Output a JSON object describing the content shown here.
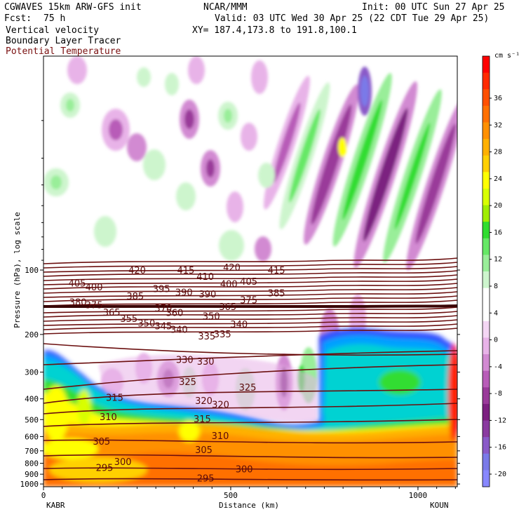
{
  "header": {
    "model": "CGWAVES 15km ARW-GFS init",
    "center": "NCAR/MMM",
    "init": "Init: 00 UTC Sun 27 Apr 25",
    "fcst_label": "Fcst:",
    "fcst_value": "75 h",
    "valid": "Valid: 03 UTC Wed 30 Apr 25 (22 CDT Tue 29 Apr 25)",
    "xy": "XY= 187.4,173.8 to 191.8,100.1",
    "field1": "Vertical velocity",
    "field2": "Boundary Layer Tracer",
    "field3": "Potential Temperature"
  },
  "colors": {
    "theta_contour": "#6b0f0f",
    "field3_text": "#7a1010"
  },
  "chart_data": {
    "type": "heatmap",
    "title": "",
    "xlabel": "Distance (km)",
    "ylabel": "Pressure (hPa), log scale",
    "x_ticks": [
      0,
      500,
      1000
    ],
    "y_ticks": [
      100,
      200,
      300,
      400,
      500,
      600,
      700,
      800,
      900,
      1000
    ],
    "y_scale": "log",
    "xlim": [
      0,
      1105
    ],
    "ylim": [
      1030,
      10
    ],
    "endpoints": {
      "left": "KABR",
      "right": "KOUN"
    },
    "colorbar": {
      "unit": "cm s⁻¹",
      "labels": [
        36,
        32,
        28,
        24,
        20,
        16,
        12,
        8,
        4,
        0,
        -4,
        -8,
        -12,
        -16,
        -20
      ],
      "colors": [
        "#ff0000",
        "#ff2a00",
        "#ff5000",
        "#ff7000",
        "#ff9000",
        "#ffb000",
        "#ffd000",
        "#ffff00",
        "#d8ff00",
        "#a0ee00",
        "#30dd30",
        "#66e866",
        "#99ee99",
        "#cdf5cd",
        "#ffffff",
        "#ffffff",
        "#f4d6f4",
        "#e8b3e8",
        "#d28ad2",
        "#b85cb8",
        "#9a3a9a",
        "#7c2080",
        "#8a3aa0",
        "#8a5ac8",
        "#7a7ae8",
        "#8888ff"
      ]
    },
    "theta_labels": [
      {
        "v": "420",
        "x": 250,
        "p": 100
      },
      {
        "v": "415",
        "x": 380,
        "p": 100
      },
      {
        "v": "420",
        "x": 503,
        "p": 97
      },
      {
        "v": "415",
        "x": 622,
        "p": 100
      },
      {
        "v": "405",
        "x": 90,
        "p": 115
      },
      {
        "v": "400",
        "x": 135,
        "p": 120
      },
      {
        "v": "410",
        "x": 432,
        "p": 107
      },
      {
        "v": "400",
        "x": 495,
        "p": 116
      },
      {
        "v": "405",
        "x": 548,
        "p": 113
      },
      {
        "v": "395",
        "x": 315,
        "p": 122
      },
      {
        "v": "390",
        "x": 375,
        "p": 127
      },
      {
        "v": "390",
        "x": 438,
        "p": 129
      },
      {
        "v": "385",
        "x": 245,
        "p": 132
      },
      {
        "v": "385",
        "x": 622,
        "p": 128
      },
      {
        "v": "380",
        "x": 92,
        "p": 141
      },
      {
        "v": "375",
        "x": 135,
        "p": 145
      },
      {
        "v": "375",
        "x": 548,
        "p": 138
      },
      {
        "v": "370",
        "x": 320,
        "p": 150
      },
      {
        "v": "365",
        "x": 492,
        "p": 148
      },
      {
        "v": "365",
        "x": 182,
        "p": 157
      },
      {
        "v": "360",
        "x": 350,
        "p": 158
      },
      {
        "v": "355",
        "x": 228,
        "p": 168
      },
      {
        "v": "350",
        "x": 275,
        "p": 177
      },
      {
        "v": "350",
        "x": 448,
        "p": 164
      },
      {
        "v": "345",
        "x": 320,
        "p": 182
      },
      {
        "v": "340",
        "x": 362,
        "p": 189
      },
      {
        "v": "340",
        "x": 522,
        "p": 179
      },
      {
        "v": "335",
        "x": 436,
        "p": 203
      },
      {
        "v": "335",
        "x": 478,
        "p": 199
      },
      {
        "v": "330",
        "x": 377,
        "p": 262
      },
      {
        "v": "330",
        "x": 433,
        "p": 267
      },
      {
        "v": "325",
        "x": 385,
        "p": 332
      },
      {
        "v": "325",
        "x": 545,
        "p": 353
      },
      {
        "v": "320",
        "x": 428,
        "p": 407
      },
      {
        "v": "320",
        "x": 473,
        "p": 424
      },
      {
        "v": "315",
        "x": 190,
        "p": 394
      },
      {
        "v": "315",
        "x": 424,
        "p": 496
      },
      {
        "v": "310",
        "x": 173,
        "p": 485
      },
      {
        "v": "310",
        "x": 472,
        "p": 593
      },
      {
        "v": "305",
        "x": 155,
        "p": 630
      },
      {
        "v": "305",
        "x": 428,
        "p": 691
      },
      {
        "v": "300",
        "x": 212,
        "p": 785
      },
      {
        "v": "300",
        "x": 536,
        "p": 850
      },
      {
        "v": "295",
        "x": 163,
        "p": 838
      },
      {
        "v": "295",
        "x": 433,
        "p": 938
      }
    ]
  }
}
